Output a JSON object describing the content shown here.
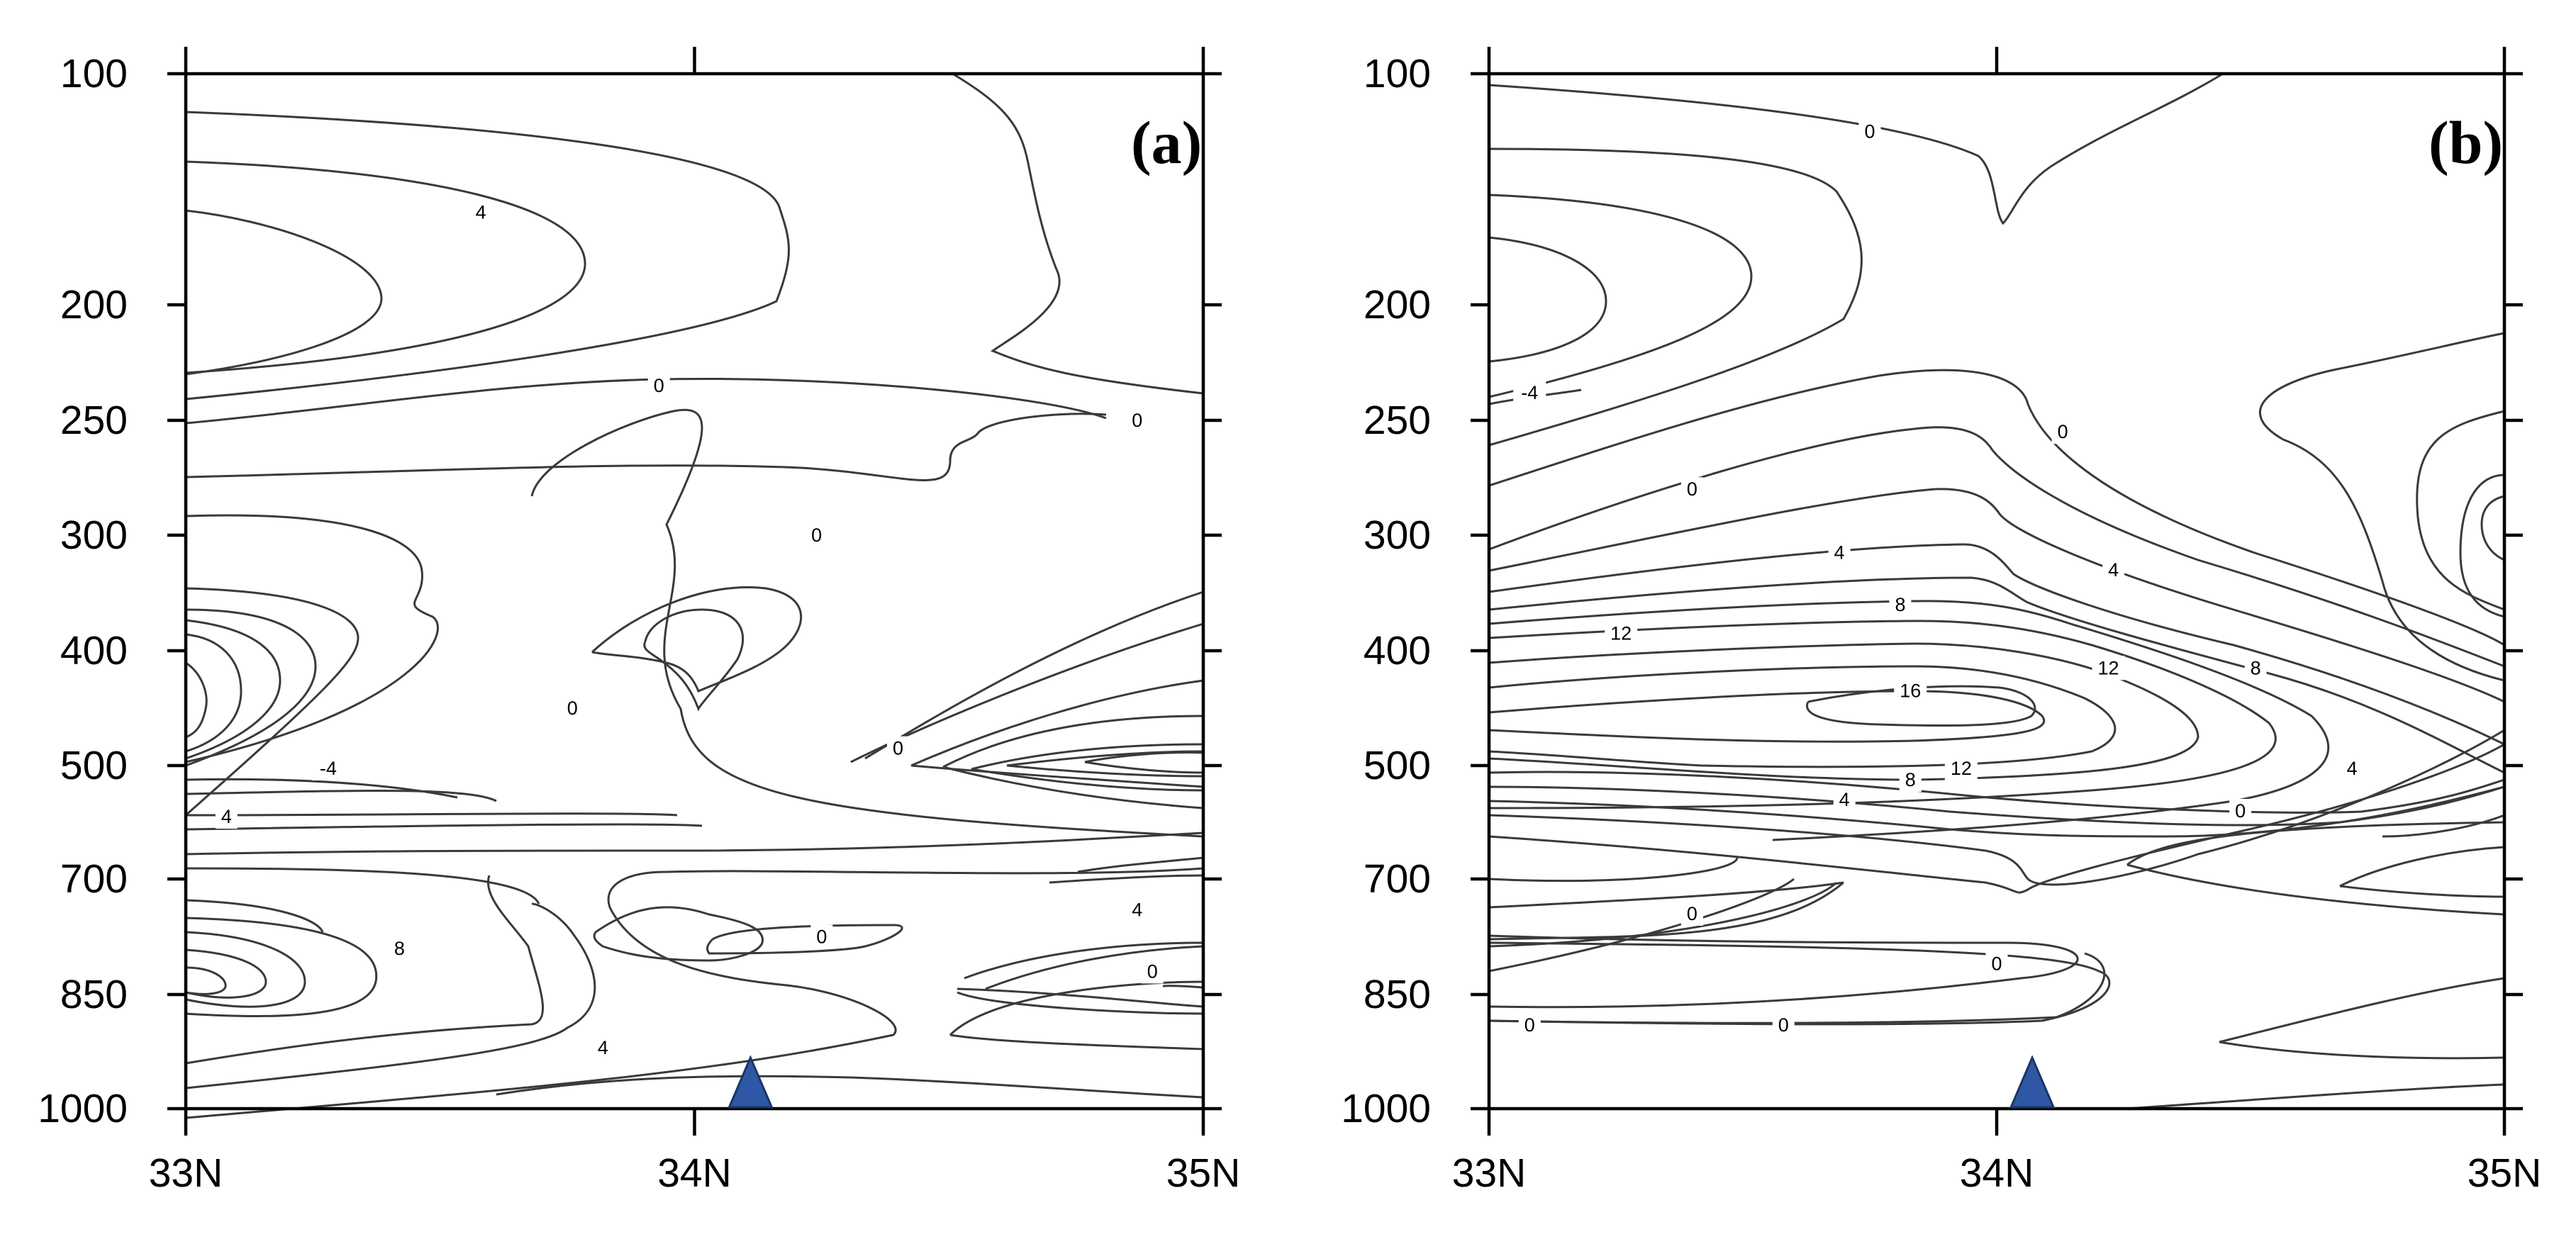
{
  "chart_data": [
    {
      "type": "contour",
      "panel_label": "(a)",
      "x_ticks": [
        "33N",
        "34N",
        "35N"
      ],
      "x_range": [
        33,
        35
      ],
      "y_ticks": [
        "100",
        "200",
        "250",
        "300",
        "400",
        "500",
        "700",
        "850",
        "1000"
      ],
      "y_axis_reversed": true,
      "contour_labels": [
        {
          "text": "4",
          "lat": 33.58,
          "level": 160
        },
        {
          "text": "0",
          "lat": 33.93,
          "level": 235
        },
        {
          "text": "0",
          "lat": 34.87,
          "level": 250
        },
        {
          "text": "0",
          "lat": 34.24,
          "level": 300
        },
        {
          "text": "0",
          "lat": 33.76,
          "level": 450
        },
        {
          "text": "0",
          "lat": 34.4,
          "level": 485
        },
        {
          "text": "-4",
          "lat": 33.28,
          "level": 505
        },
        {
          "text": "4",
          "lat": 33.08,
          "level": 590
        },
        {
          "text": "8",
          "lat": 33.42,
          "level": 790
        },
        {
          "text": "0",
          "lat": 34.25,
          "level": 775
        },
        {
          "text": "4",
          "lat": 34.87,
          "level": 740
        },
        {
          "text": "0",
          "lat": 34.9,
          "level": 820
        },
        {
          "text": "4",
          "lat": 33.82,
          "level": 920
        }
      ],
      "marker": {
        "lat": 34.11,
        "level": 1000
      }
    },
    {
      "type": "contour",
      "panel_label": "(b)",
      "x_ticks": [
        "33N",
        "34N",
        "35N"
      ],
      "x_range": [
        33,
        35
      ],
      "y_ticks": [
        "100",
        "200",
        "250",
        "300",
        "400",
        "500",
        "700",
        "850",
        "1000"
      ],
      "y_axis_reversed": true,
      "contour_labels": [
        {
          "text": "0",
          "lat": 33.75,
          "level": 125
        },
        {
          "text": "-4",
          "lat": 33.08,
          "level": 238
        },
        {
          "text": "0",
          "lat": 34.13,
          "level": 255
        },
        {
          "text": "0",
          "lat": 33.4,
          "level": 280
        },
        {
          "text": "4",
          "lat": 33.69,
          "level": 315
        },
        {
          "text": "4",
          "lat": 34.23,
          "level": 330
        },
        {
          "text": "8",
          "lat": 33.81,
          "level": 360
        },
        {
          "text": "12",
          "lat": 33.26,
          "level": 385
        },
        {
          "text": "16",
          "lat": 33.83,
          "level": 435
        },
        {
          "text": "12",
          "lat": 34.22,
          "level": 415
        },
        {
          "text": "8",
          "lat": 34.51,
          "level": 415
        },
        {
          "text": "12",
          "lat": 33.93,
          "level": 505
        },
        {
          "text": "8",
          "lat": 33.83,
          "level": 525
        },
        {
          "text": "4",
          "lat": 33.7,
          "level": 560
        },
        {
          "text": "4",
          "lat": 34.7,
          "level": 505
        },
        {
          "text": "0",
          "lat": 34.48,
          "level": 580
        },
        {
          "text": "0",
          "lat": 33.4,
          "level": 745
        },
        {
          "text": "0",
          "lat": 34.0,
          "level": 810
        },
        {
          "text": "0",
          "lat": 33.08,
          "level": 890
        },
        {
          "text": "0",
          "lat": 33.58,
          "level": 890
        }
      ],
      "marker": {
        "lat": 34.07,
        "level": 1000
      }
    }
  ]
}
